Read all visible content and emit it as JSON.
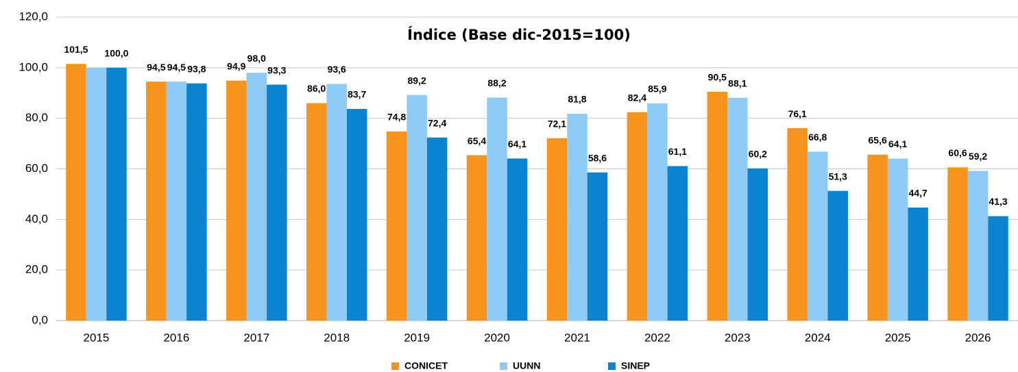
{
  "chart_data": {
    "type": "bar",
    "title": "Índice (Base dic-2015=100)",
    "categories": [
      "2015",
      "2016",
      "2017",
      "2018",
      "2019",
      "2020",
      "2021",
      "2022",
      "2023",
      "2024",
      "2025",
      "2026"
    ],
    "series": [
      {
        "name": "CONICET",
        "color": "#f7941d",
        "values": [
          101.5,
          94.5,
          94.9,
          86.0,
          74.8,
          65.4,
          72.1,
          82.4,
          90.5,
          76.1,
          65.6,
          60.6
        ],
        "value_labels": [
          "101,5",
          "94,5",
          "94,9",
          "86,0",
          "74,8",
          "65,4",
          "72,1",
          "82,4",
          "90,5",
          "76,1",
          "65,6",
          "60,6"
        ]
      },
      {
        "name": "UUNN",
        "color": "#8ecbf7",
        "values": [
          100.0,
          94.5,
          98.0,
          93.6,
          89.2,
          88.2,
          81.8,
          85.9,
          88.1,
          66.8,
          64.1,
          59.2
        ],
        "value_labels": [
          null,
          "94,5",
          "98,0",
          "93,6",
          "89,2",
          "88,2",
          "81,8",
          "85,9",
          "88,1",
          "66,8",
          "64,1",
          "59,2"
        ]
      },
      {
        "name": "SINEP",
        "color": "#0a84d0",
        "values": [
          100.0,
          93.8,
          93.3,
          83.7,
          72.4,
          64.1,
          58.6,
          61.1,
          60.2,
          51.3,
          44.7,
          41.3
        ],
        "value_labels": [
          "100,0",
          "93,8",
          "93,3",
          "83,7",
          "72,4",
          "64,1",
          "58,6",
          "61,1",
          "60,2",
          "51,3",
          "44,7",
          "41,3"
        ]
      }
    ],
    "ylim": [
      0,
      120
    ],
    "yticks": [
      {
        "value": 0,
        "label": "0,0"
      },
      {
        "value": 20,
        "label": "20,0"
      },
      {
        "value": 40,
        "label": "40,0"
      },
      {
        "value": 60,
        "label": "60,0"
      },
      {
        "value": 80,
        "label": "80,0"
      },
      {
        "value": 100,
        "label": "100,0"
      },
      {
        "value": 120,
        "label": "120,0"
      }
    ],
    "grid": true,
    "legend": "bottom"
  }
}
